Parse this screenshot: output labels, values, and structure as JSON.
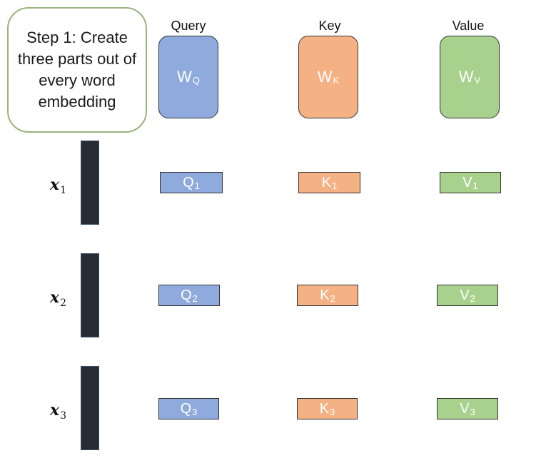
{
  "step": {
    "text": "Step 1: Create three parts out of every word embedding"
  },
  "columns": [
    {
      "label": "Query",
      "weight_base": "W",
      "weight_sub": "Q",
      "vector_base": "Q",
      "color": "#8faadc"
    },
    {
      "label": "Key",
      "weight_base": "W",
      "weight_sub": "K",
      "vector_base": "K",
      "color": "#f4b183"
    },
    {
      "label": "Value",
      "weight_base": "W",
      "weight_sub": "V",
      "vector_base": "V",
      "color": "#a9d18e"
    }
  ],
  "rows": [
    {
      "x_base": "x",
      "index": "1"
    },
    {
      "x_base": "x",
      "index": "2"
    },
    {
      "x_base": "x",
      "index": "3"
    }
  ]
}
